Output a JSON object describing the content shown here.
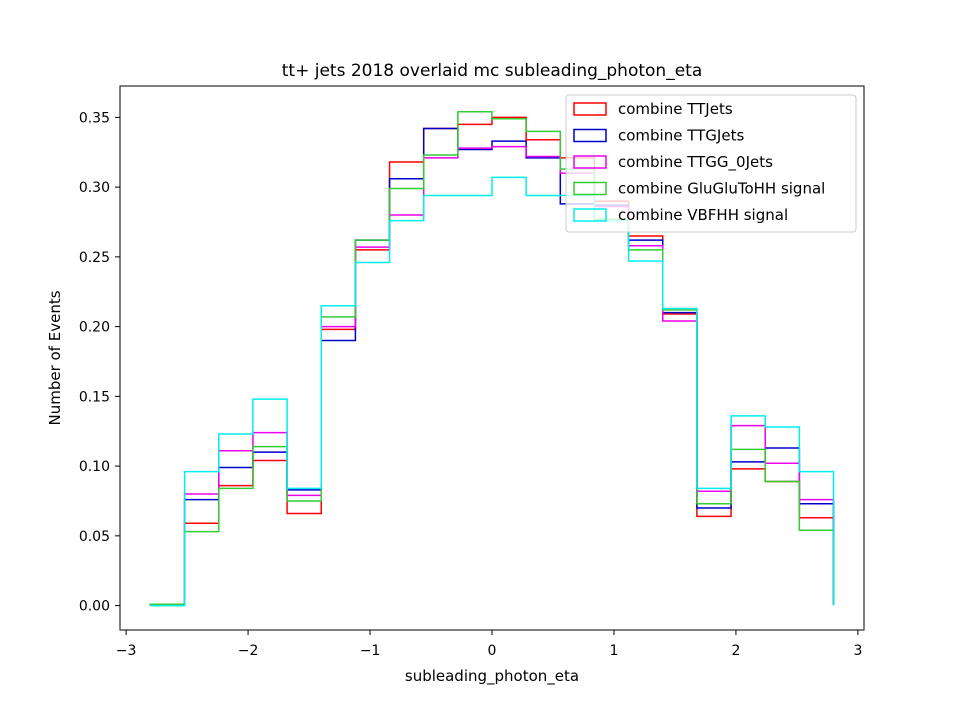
{
  "chart_data": {
    "type": "histogram",
    "title": "tt+ jets 2018 overlaid mc subleading_photon_eta",
    "xlabel": "subleading_photon_eta",
    "ylabel": "Number of Events",
    "xlim": [
      -3.05,
      3.05
    ],
    "ylim": [
      -0.0175,
      0.3725
    ],
    "grid": false,
    "legend_position": "upper right",
    "x_ticks": [
      -3,
      -2,
      -1,
      0,
      1,
      2,
      3
    ],
    "x_tick_labels": [
      "−3",
      "−2",
      "−1",
      "0",
      "1",
      "2",
      "3"
    ],
    "y_ticks": [
      0.0,
      0.05,
      0.1,
      0.15,
      0.2,
      0.25,
      0.3,
      0.35
    ],
    "y_tick_labels": [
      "0.00",
      "0.05",
      "0.10",
      "0.15",
      "0.20",
      "0.25",
      "0.30",
      "0.35"
    ],
    "bin_edges": [
      -2.8,
      -2.52,
      -2.24,
      -1.96,
      -1.68,
      -1.4,
      -1.12,
      -0.84,
      -0.56,
      -0.28,
      0.0,
      0.28,
      0.56,
      0.84,
      1.12,
      1.4,
      1.68,
      1.96,
      2.24,
      2.52,
      2.8
    ],
    "series": [
      {
        "name": "combine TTJets",
        "color": "#ff0000",
        "values": [
          0.001,
          0.059,
          0.086,
          0.104,
          0.066,
          0.198,
          0.255,
          0.318,
          0.342,
          0.345,
          0.35,
          0.334,
          0.321,
          0.29,
          0.265,
          0.209,
          0.064,
          0.098,
          0.089,
          0.063,
          0.001
        ]
      },
      {
        "name": "combine TTGJets",
        "color": "#0000cc",
        "values": [
          0.001,
          0.076,
          0.099,
          0.11,
          0.083,
          0.19,
          0.262,
          0.306,
          0.342,
          0.327,
          0.333,
          0.321,
          0.288,
          0.287,
          0.262,
          0.21,
          0.07,
          0.103,
          0.113,
          0.073,
          0.001
        ]
      },
      {
        "name": "combine TTGG_0Jets",
        "color": "#ee00ee",
        "values": [
          0.001,
          0.08,
          0.111,
          0.124,
          0.079,
          0.2,
          0.257,
          0.28,
          0.321,
          0.328,
          0.329,
          0.322,
          0.31,
          0.286,
          0.258,
          0.204,
          0.082,
          0.129,
          0.102,
          0.076,
          0.001
        ]
      },
      {
        "name": "combine GluGluToHH signal",
        "color": "#33cc33",
        "values": [
          0.001,
          0.053,
          0.084,
          0.114,
          0.075,
          0.207,
          0.262,
          0.299,
          0.323,
          0.354,
          0.349,
          0.34,
          0.313,
          0.277,
          0.255,
          0.212,
          0.073,
          0.112,
          0.089,
          0.054,
          0.001
        ]
      },
      {
        "name": "combine VBFHH signal",
        "color": "#00eeee",
        "values": [
          0.0,
          0.096,
          0.123,
          0.148,
          0.084,
          0.215,
          0.246,
          0.276,
          0.294,
          0.294,
          0.307,
          0.294,
          0.294,
          0.276,
          0.247,
          0.213,
          0.084,
          0.136,
          0.128,
          0.096,
          0.0
        ]
      }
    ]
  }
}
